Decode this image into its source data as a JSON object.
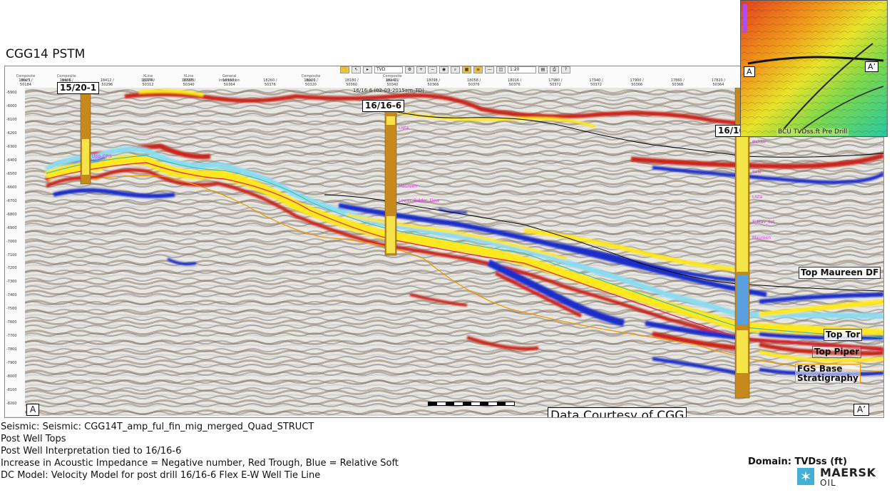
{
  "page": {
    "title": "CGG14 PSTM",
    "courtesy": "Data Courtesy of CGG"
  },
  "toolbar": {
    "domain_select": "TVD",
    "scale_select": "1:20"
  },
  "trace_headers": [
    {
      "line": "Composite line 1",
      "nums": "18025 / 50184"
    },
    {
      "line": "Composite line 6",
      "nums": "18406 / 50388"
    },
    {
      "line": "",
      "nums": "18412 / 50296"
    },
    {
      "line": "XLine 12974",
      "nums": "18274 / 50312"
    },
    {
      "line": "XLine 12975",
      "nums": "18338 / 50340"
    },
    {
      "line": "General intersection",
      "nums": "18330 / 50364"
    },
    {
      "line": "",
      "nums": "18260 / 50376"
    },
    {
      "line": "Composite line 1",
      "nums": "18220 / 50320"
    },
    {
      "line": "",
      "nums": "18180 / 50360"
    },
    {
      "line": "Composite line 11",
      "nums": "18140 / 50340"
    },
    {
      "line": "",
      "nums": "18098 / 50366"
    },
    {
      "line": "",
      "nums": "18058 / 50376"
    },
    {
      "line": "",
      "nums": "18016 / 50376"
    },
    {
      "line": "",
      "nums": "17980 / 50372"
    },
    {
      "line": "",
      "nums": "17940 / 50372"
    },
    {
      "line": "",
      "nums": "17900 / 50366"
    },
    {
      "line": "",
      "nums": "17860 / 50368"
    },
    {
      "line": "",
      "nums": "17820 / 50364"
    },
    {
      "line": "Composite line 45",
      "nums": "17780 / 50364"
    },
    {
      "line": "",
      "nums": "17740 / 50360"
    },
    {
      "line": "",
      "nums": "17700 / 50360"
    }
  ],
  "well_annotation": "16/16-6 (02-09-2015am_TD)",
  "depth_ticks": [
    "-5900",
    "-6000",
    "-6100",
    "-6200",
    "-6300",
    "-6400",
    "-6500",
    "-6600",
    "-6700",
    "-6800",
    "-6900",
    "-7000",
    "-7100",
    "-7200",
    "-7300",
    "-7400",
    "-7500",
    "-7600",
    "-7700",
    "-7800",
    "-7900",
    "-8000",
    "-8100",
    "-8200"
  ],
  "wells": [
    {
      "name": "15/20-1",
      "tops": [
        "Upp_ORS"
      ]
    },
    {
      "name": "16/16-6",
      "tops": [
        "Lista",
        "Maureen",
        "Lower_Balder_Flow"
      ]
    },
    {
      "name": "16/16b-5",
      "tops": [
        "Balder",
        "Sele",
        "Lista",
        "T_Mav_Sst",
        "Maureen"
      ]
    }
  ],
  "horizons": [
    {
      "name": "Top Maureen DF",
      "color": "#000000"
    },
    {
      "name": "Top Tor",
      "color": "#40c0b0"
    },
    {
      "name": "Top Piper",
      "color": "#e0204a"
    },
    {
      "name": "FGS Base\nStratigraphy",
      "color": "#e89a00"
    }
  ],
  "corners": {
    "left": "A",
    "right": "A’"
  },
  "inset": {
    "left_label": "A",
    "right_label": "A’",
    "caption": "BCU TVDss.ft Pre Drill"
  },
  "footer": {
    "lines": [
      "Seismic: Seismic: CGG14T_amp_ful_fin_mig_merged_Quad_STRUCT",
      "Post Well Tops",
      "Post Well Interpretation tied to 16/16-6",
      "Increase in Acoustic Impedance = Negative number, Red Trough, Blue = Relative Soft",
      "DC Model: Velocity Model for post drill 16/16-6 Flex E-W Well Tie Line"
    ],
    "domain": "Domain: TVDss (ft)"
  },
  "logo": {
    "name": "MAERSK",
    "sub": "OIL"
  },
  "colors": {
    "peak_yellow": "#ffe81a",
    "trough_red": "#c8281e",
    "soft_blue": "#1a2fc8",
    "light_blue": "#8cdcf0",
    "well_brown": "#c68a1c"
  }
}
